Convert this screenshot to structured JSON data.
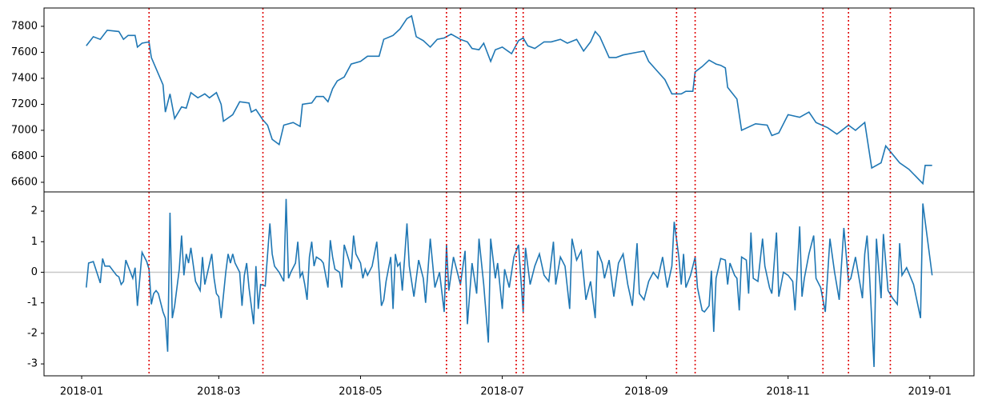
{
  "chart_data": [
    {
      "type": "line",
      "color": "#1f77b4",
      "x": [
        2,
        5,
        8,
        11,
        16,
        18,
        20,
        23,
        24,
        26,
        29,
        30,
        35,
        36,
        38,
        40,
        43,
        45,
        47,
        50,
        53,
        55,
        58,
        60,
        61,
        65,
        68,
        72,
        73,
        75,
        78,
        80,
        82,
        85,
        87,
        91,
        94,
        95,
        99,
        101,
        104,
        106,
        108,
        110,
        113,
        116,
        120,
        123,
        128,
        130,
        134,
        137,
        140,
        142,
        144,
        147,
        150,
        153,
        156,
        159,
        163,
        166,
        168,
        171,
        173,
        176,
        178,
        181,
        185,
        188,
        190,
        192,
        195,
        199,
        202,
        206,
        209,
        213,
        216,
        219,
        221,
        223,
        227,
        230,
        233,
        239,
        242,
        244,
        247,
        251,
        254,
        258,
        260,
        263,
        264,
        267,
        270,
        273,
        275,
        277,
        278,
        282,
        284,
        290,
        295,
        297,
        300,
        304,
        309,
        313,
        316,
        321,
        325,
        330,
        333,
        337,
        340,
        344,
        346,
        352,
        356,
        362,
        363,
        366
      ],
      "values": [
        7650,
        7720,
        7700,
        7770,
        7760,
        7700,
        7730,
        7730,
        7640,
        7670,
        7680,
        7560,
        7350,
        7140,
        7280,
        7090,
        7180,
        7170,
        7290,
        7250,
        7280,
        7250,
        7290,
        7200,
        7070,
        7120,
        7220,
        7210,
        7140,
        7160,
        7080,
        7040,
        6930,
        6890,
        7040,
        7060,
        7030,
        7200,
        7210,
        7260,
        7260,
        7220,
        7320,
        7380,
        7410,
        7510,
        7530,
        7570,
        7570,
        7700,
        7730,
        7780,
        7860,
        7880,
        7720,
        7690,
        7640,
        7700,
        7710,
        7740,
        7700,
        7680,
        7630,
        7620,
        7670,
        7530,
        7620,
        7640,
        7590,
        7690,
        7710,
        7650,
        7630,
        7680,
        7680,
        7700,
        7670,
        7700,
        7610,
        7680,
        7760,
        7720,
        7560,
        7560,
        7580,
        7600,
        7610,
        7530,
        7470,
        7390,
        7280,
        7280,
        7300,
        7300,
        7450,
        7490,
        7540,
        7510,
        7500,
        7480,
        7330,
        7240,
        7000,
        7050,
        7040,
        6960,
        6980,
        7120,
        7100,
        7140,
        7060,
        7020,
        6970,
        7040,
        7000,
        7060,
        6710,
        6750,
        6880,
        6750,
        6700,
        6590,
        6730,
        6730
      ],
      "xlim": [
        -16.2,
        384
      ],
      "ylim": [
        6526,
        7941
      ],
      "yticks": [
        6600,
        6800,
        7000,
        7200,
        7400,
        7600,
        7800
      ],
      "vlines": [
        29,
        78,
        157,
        163,
        187,
        190,
        256,
        264,
        319,
        330,
        348
      ],
      "vline_color": "#e00000"
    },
    {
      "type": "line",
      "color": "#1f77b4",
      "x": [
        2,
        3,
        5,
        8,
        9,
        10,
        12,
        15,
        16,
        17,
        18,
        19,
        22,
        23,
        24,
        26,
        28,
        29,
        30,
        31,
        32,
        33,
        35,
        36,
        37,
        38,
        39,
        40,
        42,
        43,
        44,
        45,
        46,
        47,
        49,
        51,
        52,
        53,
        56,
        57,
        58,
        59,
        60,
        62,
        63,
        64,
        65,
        66,
        68,
        69,
        70,
        71,
        72,
        74,
        75,
        76,
        77,
        79,
        81,
        82,
        83,
        85,
        87,
        88,
        89,
        90,
        92,
        93,
        94,
        95,
        96,
        97,
        98,
        99,
        100,
        101,
        103,
        104,
        106,
        107,
        108,
        109,
        111,
        112,
        113,
        115,
        116,
        117,
        118,
        120,
        121,
        122,
        123,
        125,
        127,
        128,
        129,
        130,
        131,
        133,
        134,
        135,
        136,
        137,
        138,
        140,
        141,
        143,
        145,
        147,
        148,
        150,
        152,
        154,
        156,
        157,
        158,
        160,
        161,
        163,
        165,
        166,
        168,
        170,
        171,
        173,
        175,
        176,
        178,
        179,
        181,
        182,
        184,
        186,
        188,
        190,
        191,
        193,
        195,
        197,
        199,
        201,
        203,
        204,
        206,
        208,
        210,
        211,
        213,
        215,
        217,
        219,
        221,
        222,
        224,
        225,
        227,
        229,
        231,
        233,
        235,
        237,
        239,
        240,
        242,
        244,
        246,
        248,
        250,
        252,
        254,
        255,
        257,
        258,
        259,
        260,
        262,
        264,
        265,
        267,
        268,
        270,
        271,
        272,
        273,
        275,
        277,
        278,
        279,
        281,
        282,
        283,
        284,
        286,
        287,
        288,
        289,
        291,
        293,
        294,
        296,
        297,
        299,
        300,
        302,
        304,
        306,
        307,
        309,
        310,
        311,
        313,
        315,
        316,
        318,
        320,
        322,
        324,
        326,
        328,
        330,
        331,
        333,
        336,
        337,
        338,
        339,
        341,
        342,
        344,
        345,
        347,
        349,
        351,
        352,
        353,
        355,
        358,
        361,
        362,
        366
      ],
      "values": [
        -0.5,
        0.3,
        0.35,
        -0.35,
        0.45,
        0.2,
        0.2,
        -0.1,
        -0.15,
        -0.4,
        -0.3,
        0.4,
        -0.2,
        0.15,
        -1.1,
        0.65,
        0.35,
        0.1,
        -1.05,
        -0.7,
        -0.6,
        -0.7,
        -1.3,
        -1.5,
        -2.6,
        1.95,
        -1.5,
        -1.1,
        0.1,
        1.2,
        -0.1,
        0.6,
        0.3,
        0.8,
        -0.3,
        -0.6,
        0.5,
        -0.4,
        0.6,
        -0.2,
        -0.7,
        -0.8,
        -1.5,
        0.0,
        0.6,
        0.3,
        0.6,
        0.3,
        0.0,
        -1.1,
        -0.1,
        0.3,
        -0.5,
        -1.7,
        0.2,
        -1.2,
        -0.4,
        -0.45,
        1.6,
        0.6,
        0.2,
        0.0,
        -0.3,
        2.4,
        -0.2,
        0.0,
        0.3,
        1.0,
        -0.15,
        0.0,
        -0.4,
        -0.9,
        0.5,
        1.0,
        0.2,
        0.5,
        0.4,
        0.3,
        -0.5,
        1.05,
        0.5,
        0.1,
        0.0,
        -0.5,
        0.9,
        0.4,
        0.1,
        1.2,
        0.6,
        0.3,
        -0.2,
        0.1,
        -0.1,
        0.2,
        1.0,
        0.0,
        -1.1,
        -0.9,
        -0.3,
        0.5,
        -1.2,
        0.6,
        0.2,
        0.3,
        -0.6,
        1.6,
        0.2,
        -0.8,
        0.4,
        -0.2,
        -1.0,
        1.1,
        -0.5,
        0.0,
        -1.3,
        0.9,
        -0.6,
        0.5,
        0.2,
        -0.4,
        0.7,
        -1.7,
        0.3,
        -0.7,
        1.1,
        -0.4,
        -2.3,
        1.1,
        -0.2,
        0.3,
        -1.2,
        0.1,
        -0.5,
        0.5,
        0.9,
        -1.3,
        0.8,
        -0.4,
        0.2,
        0.6,
        -0.1,
        -0.3,
        1.0,
        -0.4,
        0.5,
        0.2,
        -1.2,
        1.1,
        0.4,
        0.7,
        -0.9,
        -0.3,
        -1.5,
        0.7,
        0.3,
        -0.2,
        0.4,
        -0.8,
        0.3,
        0.6,
        -0.4,
        -1.1,
        0.95,
        -0.7,
        -0.9,
        -0.3,
        0.0,
        -0.2,
        0.5,
        -0.5,
        0.2,
        1.65,
        0.5,
        -0.4,
        0.6,
        -0.5,
        -0.1,
        0.5,
        -0.5,
        -1.25,
        -1.3,
        -1.1,
        0.05,
        -1.95,
        -0.2,
        0.45,
        0.4,
        -0.4,
        0.3,
        -0.1,
        -0.2,
        -1.25,
        0.5,
        0.4,
        -0.7,
        1.3,
        -0.2,
        -0.3,
        1.1,
        0.2,
        -0.5,
        -0.7,
        1.3,
        -0.8,
        0.0,
        -0.1,
        -0.3,
        -1.25,
        1.5,
        -0.8,
        -0.2,
        0.6,
        1.2,
        -0.2,
        -0.5,
        -1.3,
        1.1,
        0.0,
        -0.9,
        1.45,
        -0.3,
        -0.2,
        0.5,
        -0.85,
        0.6,
        1.2,
        0.0,
        -3.1,
        1.1,
        -0.85,
        1.25,
        -0.6,
        -0.85,
        -1.05,
        0.95,
        -0.1,
        0.15,
        -0.4,
        -1.5,
        2.25,
        -0.1
      ],
      "xlim": [
        -16.2,
        384
      ],
      "ylim": [
        -3.39,
        2.63
      ],
      "yticks": [
        -3,
        -2,
        -1,
        0,
        1,
        2
      ],
      "hlines": [
        0
      ],
      "hline_color": "#c8c8c8",
      "xticks": [
        {
          "value": 0,
          "label": "2018-01"
        },
        {
          "value": 59,
          "label": "2018-03"
        },
        {
          "value": 120,
          "label": "2018-05"
        },
        {
          "value": 181,
          "label": "2018-07"
        },
        {
          "value": 243,
          "label": "2018-09"
        },
        {
          "value": 304,
          "label": "2018-11"
        },
        {
          "value": 365,
          "label": "2019-01"
        }
      ],
      "vlines": [
        29,
        78,
        157,
        163,
        187,
        190,
        256,
        264,
        319,
        330,
        348
      ],
      "vline_color": "#e00000"
    }
  ]
}
